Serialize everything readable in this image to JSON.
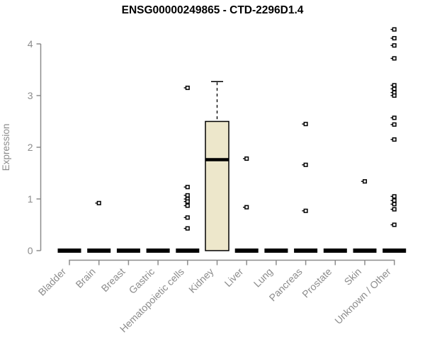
{
  "title": "ENSG00000249865 - CTD-2296D1.4",
  "chart_data": {
    "type": "boxplot",
    "title": "ENSG00000249865 - CTD-2296D1.4",
    "ylabel": "Expression",
    "xlabel": "",
    "ylim": [
      0,
      4.35
    ],
    "yticks": [
      0,
      1,
      2,
      3,
      4
    ],
    "grid": false,
    "legend": null,
    "categories": [
      "Bladder",
      "Brain",
      "Breast",
      "Gastric",
      "Hematopoietic cells",
      "Kidney",
      "Liver",
      "Lung",
      "Pancreas",
      "Prostate",
      "Skin",
      "Unknown / Other"
    ],
    "series": [
      {
        "category": "Bladder",
        "zero_bar": true,
        "box": null,
        "points": []
      },
      {
        "category": "Brain",
        "zero_bar": true,
        "box": null,
        "points": [
          0.92
        ]
      },
      {
        "category": "Breast",
        "zero_bar": true,
        "box": null,
        "points": []
      },
      {
        "category": "Gastric",
        "zero_bar": true,
        "box": null,
        "points": []
      },
      {
        "category": "Hematopoietic cells",
        "zero_bar": true,
        "box": null,
        "points": [
          3.15,
          1.23,
          1.07,
          1.0,
          0.95,
          0.87,
          0.64,
          0.43
        ]
      },
      {
        "category": "Kidney",
        "zero_bar": false,
        "box": {
          "q1": 0,
          "median": 1.76,
          "q3": 2.5,
          "whisker_high": 3.27,
          "whisker_low": 0
        },
        "points": []
      },
      {
        "category": "Liver",
        "zero_bar": true,
        "box": null,
        "points": [
          1.78,
          0.84
        ]
      },
      {
        "category": "Lung",
        "zero_bar": true,
        "box": null,
        "points": []
      },
      {
        "category": "Pancreas",
        "zero_bar": true,
        "box": null,
        "points": [
          2.45,
          1.66,
          0.77
        ]
      },
      {
        "category": "Prostate",
        "zero_bar": true,
        "box": null,
        "points": []
      },
      {
        "category": "Skin",
        "zero_bar": true,
        "box": null,
        "points": [
          1.34
        ]
      },
      {
        "category": "Unknown / Other",
        "zero_bar": true,
        "box": null,
        "points": [
          4.28,
          4.11,
          3.97,
          3.72,
          3.2,
          3.13,
          3.06,
          3.0,
          2.57,
          2.44,
          2.15,
          1.05,
          0.97,
          0.9,
          0.8,
          0.5
        ]
      }
    ],
    "colors": {
      "box_fill": "#ede7cb",
      "box_border": "#000000",
      "marker": "#000000",
      "marker_fill": "#ffffff",
      "zero_bar": "#000000",
      "axis": "#8c8c8c",
      "tick_label": "#8c8c8c",
      "title": "#000000",
      "background": "#ffffff"
    }
  }
}
